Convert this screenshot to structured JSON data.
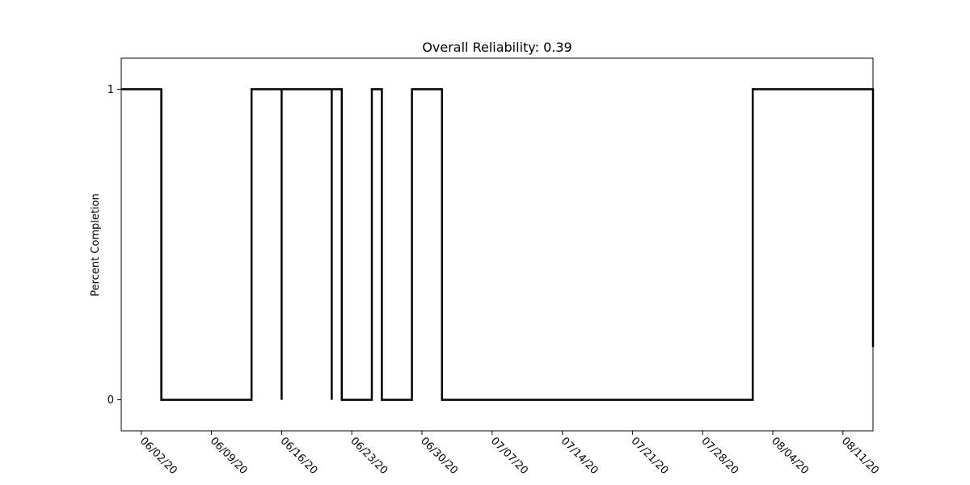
{
  "chart_data": {
    "type": "line",
    "title": "Overall Reliability: 0.39",
    "xlabel": "",
    "ylabel": "Percent Completion",
    "grid": false,
    "legend": "none",
    "line_color": "#000000",
    "xlim": [
      "2020-05-31",
      "2020-08-14"
    ],
    "ylim": [
      -0.1,
      1.1
    ],
    "y_ticks": [
      0,
      1
    ],
    "y_tick_labels": [
      "0",
      "1"
    ],
    "x_ticks": [
      "2020-06-02",
      "2020-06-09",
      "2020-06-16",
      "2020-06-23",
      "2020-06-30",
      "2020-07-07",
      "2020-07-14",
      "2020-07-21",
      "2020-07-28",
      "2020-08-04",
      "2020-08-11"
    ],
    "x_tick_labels": [
      "06/02/20",
      "06/09/20",
      "06/16/20",
      "06/23/20",
      "06/30/20",
      "07/07/20",
      "07/14/20",
      "07/21/20",
      "07/28/20",
      "08/04/20",
      "08/11/20"
    ],
    "series": [
      {
        "x": [
          "2020-05-31",
          "2020-06-04",
          "2020-06-04",
          "2020-06-13",
          "2020-06-13",
          "2020-06-16",
          "2020-06-16",
          "2020-06-16",
          "2020-06-16",
          "2020-06-21",
          "2020-06-21",
          "2020-06-21",
          "2020-06-21",
          "2020-06-22",
          "2020-06-22",
          "2020-06-25",
          "2020-06-25",
          "2020-06-26",
          "2020-06-26",
          "2020-06-29",
          "2020-06-29",
          "2020-07-02",
          "2020-07-02",
          "2020-08-02",
          "2020-08-02",
          "2020-08-14",
          "2020-08-14"
        ],
        "y": [
          1,
          1,
          0,
          0,
          1,
          1,
          0,
          0,
          1,
          1,
          0,
          0,
          1,
          1,
          0,
          0,
          1,
          1,
          0,
          0,
          1,
          1,
          0,
          0,
          1,
          1,
          0.17
        ]
      }
    ]
  }
}
